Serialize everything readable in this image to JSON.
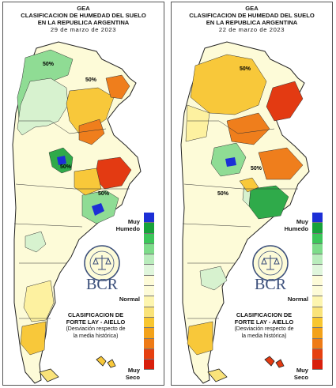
{
  "panels": [
    {
      "id": "left",
      "header": {
        "org": "GEA",
        "title1": "CLASIFICACION DE HUMEDAD DEL SUELO",
        "title2": "EN LA REPUBLICA ARGENTINA",
        "date": "29 de marzo de 2023"
      },
      "map_labels": [
        "50%",
        "50%",
        "50%",
        "50%"
      ],
      "legend": {
        "top_label_1": "Muy",
        "top_label_2": "Humedo",
        "middle_label": "Normal",
        "bottom_label_1": "Muy",
        "bottom_label_2": "Seco"
      },
      "logo": {
        "text": "BCR",
        "seal_text": "BOLSA DE COMERCIO DE ROSARIO"
      },
      "method": {
        "line1": "CLASIFICACION DE",
        "line2": "FORTE LAY - AIELLO",
        "line3": "(Desviación respecto de",
        "line4": "la media histórica)"
      }
    },
    {
      "id": "right",
      "header": {
        "org": "GEA",
        "title1": "CLASIFICACION DE HUMEDAD DEL SUELO",
        "title2": "EN LA REPUBLICA ARGENTINA",
        "date": "22 de marzo de 2023"
      },
      "map_labels": [
        "50%",
        "50%",
        "50%"
      ],
      "legend": {
        "top_label_1": "Muy",
        "top_label_2": "Humedo",
        "middle_label": "Normal",
        "bottom_label_1": "Muy",
        "bottom_label_2": "Seco"
      },
      "logo": {
        "text": "BCR",
        "seal_text": "BOLSA DE COMERCIO DE ROSARIO"
      },
      "method": {
        "line1": "CLASIFICACION DE",
        "line2": "FORTE LAY - AIELLO",
        "line3": "(Desviación respecto de",
        "line4": "la media histórica)"
      }
    }
  ],
  "legend_colors": [
    "#1c2fd6",
    "#17a23a",
    "#3cc65a",
    "#7ddc8a",
    "#b9ecbc",
    "#e0f6dc",
    "#fdfbd8",
    "#fdfbd8",
    "#fdf5b0",
    "#fae37a",
    "#f8c630",
    "#f3a21a",
    "#ee7b16",
    "#e64010",
    "#d81f0c"
  ],
  "map_colors": {
    "normal": "#fdfbd8",
    "light_dry": "#fdf1a0",
    "dry": "#f8c83a",
    "very_dry": "#ef7e1c",
    "extreme_dry": "#e33a12",
    "light_wet": "#d7f2cf",
    "wet": "#8fdc94",
    "very_wet": "#2faa4a",
    "extreme_wet": "#1c2fd6"
  }
}
